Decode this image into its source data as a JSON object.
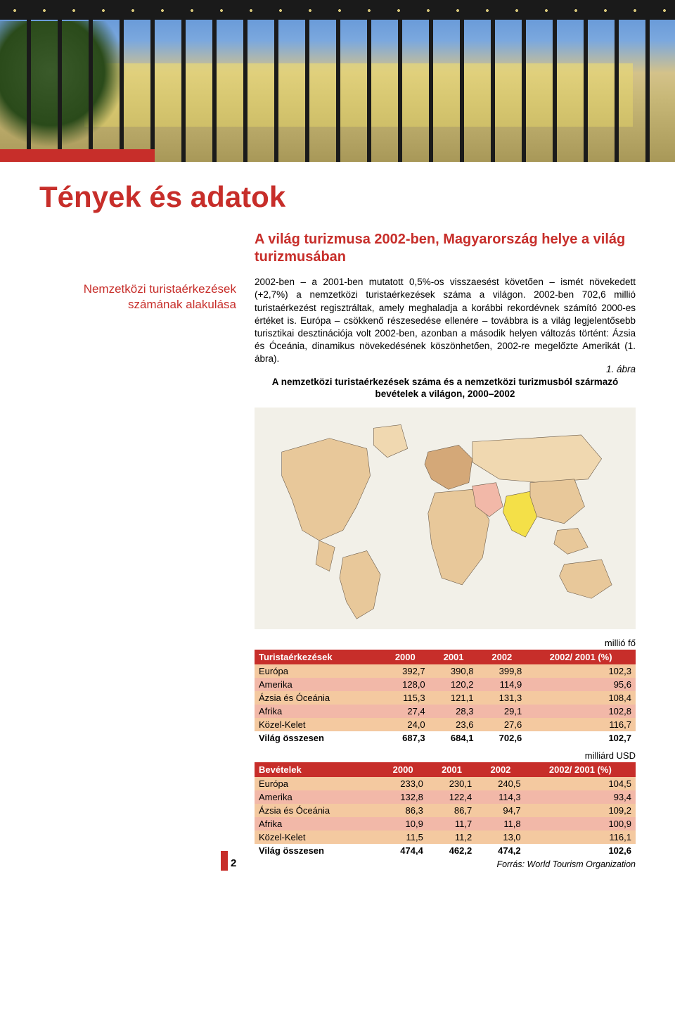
{
  "page_number": "2",
  "main_title": "Tények és adatok",
  "sidebar_label": "Nemzetközi turistaérkezések számának alakulása",
  "subtitle": "A világ turizmusa 2002-ben, Magyarország helye a világ turizmusában",
  "body_text": "2002-ben – a 2001-ben mutatott 0,5%-os visszaesést követően – ismét növekedett (+2,7%) a nemzetközi turistaérkezések száma a világon. 2002-ben 702,6 millió turistaérkezést regisztráltak, amely meghaladja a korábbi rekordévnek számító 2000-es értéket is. Európa – csökkenő részesedése ellenére – továbbra is a világ legjelentősebb turisztikai desztinációja volt 2002-ben, azonban a második helyen változás történt: Ázsia és Óceánia, dinamikus növekedésének köszönhetően, 2002-re megelőzte Amerikát (1. ábra).",
  "figure": {
    "number": "1. ábra",
    "caption": "A nemzetközi turistaérkezések száma és a nemzetközi turizmusból származó bevételek a világon, 2000–2002"
  },
  "map_colors": {
    "background": "#f2f0e8",
    "land_base": "#e8c89a",
    "land_mid": "#d4a878",
    "land_highlight": "#f4e048",
    "land_dark": "#b88858",
    "land_pale": "#f0d8b0",
    "outline": "#6a5a48"
  },
  "table1": {
    "unit": "millió fő",
    "header": [
      "Turistaérkezések",
      "2000",
      "2001",
      "2002",
      "2002/ 2001 (%)"
    ],
    "rows": [
      {
        "cells": [
          "Európa",
          "392,7",
          "390,8",
          "399,8",
          "102,3"
        ],
        "bg": "#f4c9a0"
      },
      {
        "cells": [
          "Amerika",
          "128,0",
          "120,2",
          "114,9",
          "95,6"
        ],
        "bg": "#f2b8a8"
      },
      {
        "cells": [
          "Ázsia és Óceánia",
          "115,3",
          "121,1",
          "131,3",
          "108,4"
        ],
        "bg": "#f4c9a0"
      },
      {
        "cells": [
          "Afrika",
          "27,4",
          "28,3",
          "29,1",
          "102,8"
        ],
        "bg": "#f2b8a8"
      },
      {
        "cells": [
          "Közel-Kelet",
          "24,0",
          "23,6",
          "27,6",
          "116,7"
        ],
        "bg": "#f4c9a0"
      }
    ],
    "total": [
      "Világ összesen",
      "687,3",
      "684,1",
      "702,6",
      "102,7"
    ]
  },
  "table2": {
    "unit": "milliárd USD",
    "header": [
      "Bevételek",
      "2000",
      "2001",
      "2002",
      "2002/ 2001 (%)"
    ],
    "rows": [
      {
        "cells": [
          "Európa",
          "233,0",
          "230,1",
          "240,5",
          "104,5"
        ],
        "bg": "#f4c9a0"
      },
      {
        "cells": [
          "Amerika",
          "132,8",
          "122,4",
          "114,3",
          "93,4"
        ],
        "bg": "#f2b8a8"
      },
      {
        "cells": [
          "Ázsia és Óceánia",
          "86,3",
          "86,7",
          "94,7",
          "109,2"
        ],
        "bg": "#f4c9a0"
      },
      {
        "cells": [
          "Afrika",
          "10,9",
          "11,7",
          "11,8",
          "100,9"
        ],
        "bg": "#f2b8a8"
      },
      {
        "cells": [
          "Közel-Kelet",
          "11,5",
          "11,2",
          "13,0",
          "116,1"
        ],
        "bg": "#f4c9a0"
      }
    ],
    "total": [
      "Világ összesen",
      "474,4",
      "462,2",
      "474,2",
      "102,6"
    ]
  },
  "source": "Forrás: World Tourism Organization",
  "colors": {
    "accent": "#c72e2a",
    "header_text": "#ffffff"
  }
}
